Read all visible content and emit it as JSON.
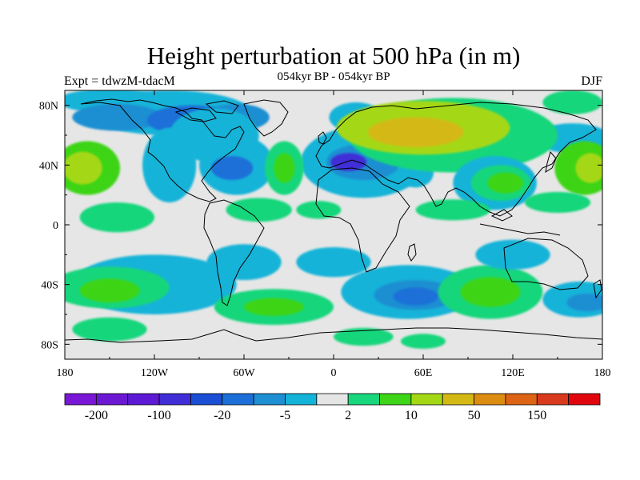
{
  "title": "Height perturbation at 500 hPa (in m)",
  "subtitle": "054kyr BP - 054kyr BP",
  "left_label": "Expt = tdwzM-tdacM",
  "right_label": "DJF",
  "axes": {
    "lat_labels": [
      "80N",
      "40N",
      "0",
      "40S",
      "80S"
    ],
    "lat_values": [
      80,
      40,
      0,
      -40,
      -80
    ],
    "lon_labels": [
      "180",
      "120W",
      "60W",
      "0",
      "60E",
      "120E",
      "180"
    ],
    "lon_values": [
      -180,
      -120,
      -60,
      0,
      60,
      120,
      180
    ],
    "lat_range": [
      -90,
      90
    ],
    "lon_range": [
      -180,
      180
    ]
  },
  "colorbar": {
    "colors": [
      "#7a17d6",
      "#6c18d3",
      "#5e19d5",
      "#3f2ed6",
      "#1a4ed5",
      "#1c6fd8",
      "#1d8fd2",
      "#14b3d8",
      "#e5e5e5",
      "#18d67c",
      "#3ed418",
      "#a4d814",
      "#d4b914",
      "#dd8c12",
      "#dc6414",
      "#d9391d",
      "#e1060e"
    ],
    "labels": [
      "-200",
      "-100",
      "-20",
      "-5",
      "2",
      "10",
      "50",
      "150"
    ],
    "label_boundaries": [
      1,
      3,
      5,
      7,
      9,
      11,
      13,
      15
    ]
  },
  "map": {
    "background": "#e6e6e6",
    "blobs": [
      {
        "lon": -150,
        "lat": 83,
        "rx": 35,
        "ry": 8,
        "level": 7
      },
      {
        "lon": -110,
        "lat": 75,
        "rx": 55,
        "ry": 15,
        "level": 7
      },
      {
        "lon": -145,
        "lat": 72,
        "rx": 30,
        "ry": 9,
        "level": 6
      },
      {
        "lon": -95,
        "lat": 70,
        "rx": 30,
        "ry": 10,
        "level": 5
      },
      {
        "lon": -65,
        "lat": 72,
        "rx": 22,
        "ry": 9,
        "level": 6
      },
      {
        "lon": -80,
        "lat": 60,
        "rx": 30,
        "ry": 18,
        "level": 7
      },
      {
        "lon": -65,
        "lat": 40,
        "rx": 25,
        "ry": 20,
        "level": 7
      },
      {
        "lon": -68,
        "lat": 38,
        "rx": 14,
        "ry": 8,
        "level": 5
      },
      {
        "lon": -110,
        "lat": 40,
        "rx": 18,
        "ry": 25,
        "level": 7
      },
      {
        "lon": 20,
        "lat": 42,
        "rx": 42,
        "ry": 24,
        "level": 7
      },
      {
        "lon": 20,
        "lat": 42,
        "rx": 25,
        "ry": 12,
        "level": 6
      },
      {
        "lon": 10,
        "lat": 42,
        "rx": 12,
        "ry": 6,
        "level": 3
      },
      {
        "lon": 15,
        "lat": 72,
        "rx": 18,
        "ry": 10,
        "level": 7
      },
      {
        "lon": 55,
        "lat": 35,
        "rx": 12,
        "ry": 10,
        "level": 7
      },
      {
        "lon": 160,
        "lat": 58,
        "rx": 25,
        "ry": 10,
        "level": 7
      },
      {
        "lon": 80,
        "lat": 60,
        "rx": 70,
        "ry": 25,
        "level": 9
      },
      {
        "lon": 60,
        "lat": 65,
        "rx": 58,
        "ry": 18,
        "level": 11
      },
      {
        "lon": 55,
        "lat": 62,
        "rx": 32,
        "ry": 10,
        "level": 12
      },
      {
        "lon": 160,
        "lat": 82,
        "rx": 20,
        "ry": 8,
        "level": 9
      },
      {
        "lon": -165,
        "lat": 38,
        "rx": 22,
        "ry": 18,
        "level": 10
      },
      {
        "lon": -168,
        "lat": 38,
        "rx": 13,
        "ry": 11,
        "level": 11
      },
      {
        "lon": 168,
        "lat": 38,
        "rx": 20,
        "ry": 18,
        "level": 10
      },
      {
        "lon": 172,
        "lat": 38,
        "rx": 10,
        "ry": 10,
        "level": 11
      },
      {
        "lon": -33,
        "lat": 38,
        "rx": 13,
        "ry": 18,
        "level": 9
      },
      {
        "lon": -33,
        "lat": 38,
        "rx": 7,
        "ry": 10,
        "level": 10
      },
      {
        "lon": 108,
        "lat": 28,
        "rx": 28,
        "ry": 18,
        "level": 7
      },
      {
        "lon": 112,
        "lat": 28,
        "rx": 20,
        "ry": 12,
        "level": 9
      },
      {
        "lon": 115,
        "lat": 28,
        "rx": 12,
        "ry": 7,
        "level": 10
      },
      {
        "lon": -145,
        "lat": 5,
        "rx": 25,
        "ry": 10,
        "level": 9
      },
      {
        "lon": -50,
        "lat": 10,
        "rx": 22,
        "ry": 8,
        "level": 9
      },
      {
        "lon": -10,
        "lat": 10,
        "rx": 15,
        "ry": 6,
        "level": 9
      },
      {
        "lon": 80,
        "lat": 10,
        "rx": 25,
        "ry": 7,
        "level": 9
      },
      {
        "lon": 150,
        "lat": 15,
        "rx": 22,
        "ry": 7,
        "level": 9
      },
      {
        "lon": -120,
        "lat": -40,
        "rx": 55,
        "ry": 20,
        "level": 7
      },
      {
        "lon": -150,
        "lat": -42,
        "rx": 40,
        "ry": 14,
        "level": 9
      },
      {
        "lon": -150,
        "lat": -44,
        "rx": 20,
        "ry": 8,
        "level": 10
      },
      {
        "lon": -40,
        "lat": -55,
        "rx": 40,
        "ry": 12,
        "level": 9
      },
      {
        "lon": -40,
        "lat": -55,
        "rx": 20,
        "ry": 6,
        "level": 10
      },
      {
        "lon": -60,
        "lat": -25,
        "rx": 25,
        "ry": 12,
        "level": 7
      },
      {
        "lon": 0,
        "lat": -25,
        "rx": 25,
        "ry": 10,
        "level": 7
      },
      {
        "lon": 50,
        "lat": -45,
        "rx": 45,
        "ry": 18,
        "level": 7
      },
      {
        "lon": 55,
        "lat": -47,
        "rx": 28,
        "ry": 10,
        "level": 6
      },
      {
        "lon": 55,
        "lat": -48,
        "rx": 15,
        "ry": 6,
        "level": 5
      },
      {
        "lon": 105,
        "lat": -45,
        "rx": 35,
        "ry": 18,
        "level": 9
      },
      {
        "lon": 105,
        "lat": -45,
        "rx": 20,
        "ry": 10,
        "level": 10
      },
      {
        "lon": 165,
        "lat": -50,
        "rx": 25,
        "ry": 12,
        "level": 7
      },
      {
        "lon": 170,
        "lat": -52,
        "rx": 14,
        "ry": 6,
        "level": 6
      },
      {
        "lon": 120,
        "lat": -20,
        "rx": 25,
        "ry": 10,
        "level": 7
      },
      {
        "lon": -150,
        "lat": -70,
        "rx": 25,
        "ry": 8,
        "level": 9
      },
      {
        "lon": 20,
        "lat": -75,
        "rx": 20,
        "ry": 6,
        "level": 9
      },
      {
        "lon": 60,
        "lat": -78,
        "rx": 15,
        "ry": 5,
        "level": 9
      }
    ]
  }
}
